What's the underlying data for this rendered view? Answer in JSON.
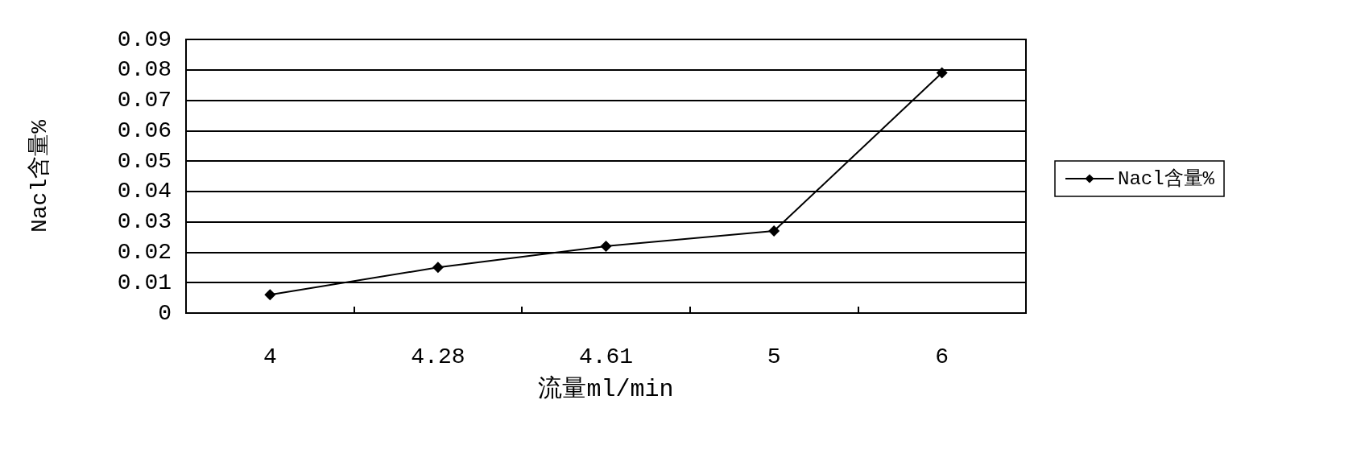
{
  "chart_data": {
    "type": "line",
    "xlabel": "流量ml/min",
    "ylabel": "Nacl含量%",
    "categories": [
      "4",
      "4.28",
      "4.61",
      "5",
      "6"
    ],
    "series": [
      {
        "name": "Nacl含量%",
        "color": "#000000",
        "values": [
          0.006,
          0.015,
          0.022,
          0.027,
          0.079
        ]
      }
    ],
    "ylim": [
      0,
      0.09
    ],
    "yticks": [
      0,
      0.01,
      0.02,
      0.03,
      0.04,
      0.05,
      0.06,
      0.07,
      0.08,
      0.09
    ],
    "grid": "y",
    "legend": "right",
    "marker": "diamond",
    "line_style": "solid"
  }
}
